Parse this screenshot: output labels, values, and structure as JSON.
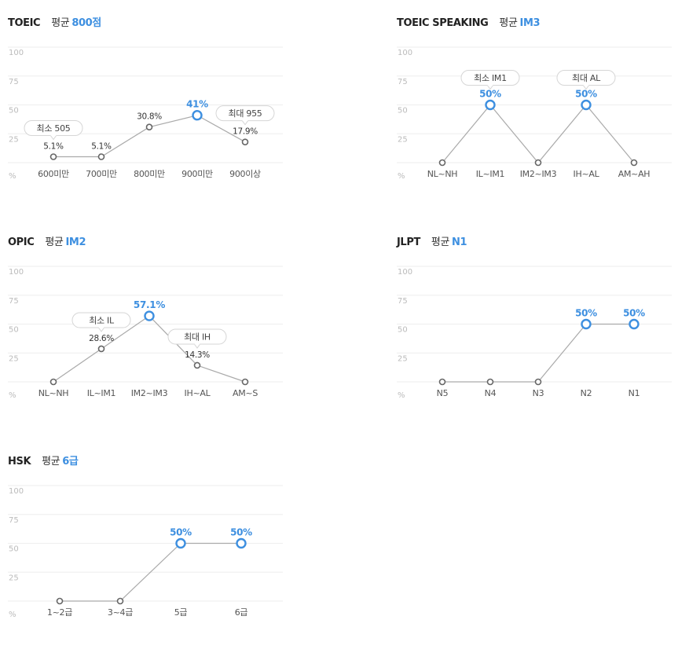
{
  "y_ticks": [
    "100",
    "75",
    "50",
    "25"
  ],
  "unit_label": "%",
  "colors": {
    "accent": "#3d8fe0",
    "point": "#666666",
    "line": "#aaaaaa",
    "grid": "#eeeeee"
  },
  "panels": [
    {
      "title": "TOEIC",
      "avg_label": "평균",
      "avg_value": "800점",
      "bubbles": [
        {
          "text": "최소 505",
          "index": 0
        },
        {
          "text": "최대 955",
          "index": 4
        }
      ]
    },
    {
      "title": "TOEIC SPEAKING",
      "avg_label": "평균",
      "avg_value": "IM3",
      "bubbles": [
        {
          "text": "최소 IM1",
          "index": 1
        },
        {
          "text": "최대 AL",
          "index": 3
        }
      ]
    },
    {
      "title": "OPIC",
      "avg_label": "평균",
      "avg_value": "IM2",
      "bubbles": [
        {
          "text": "최소 IL",
          "index": 1
        },
        {
          "text": "최대 IH",
          "index": 3
        }
      ]
    },
    {
      "title": "JLPT",
      "avg_label": "평균",
      "avg_value": "N1",
      "bubbles": []
    },
    {
      "title": "HSK",
      "avg_label": "평균",
      "avg_value": "6급",
      "bubbles": []
    }
  ],
  "chart_data": [
    {
      "type": "line",
      "title": "TOEIC",
      "ylabel": "%",
      "ylim": [
        0,
        100
      ],
      "grid": true,
      "categories": [
        "600미만",
        "700미만",
        "800미만",
        "900미만",
        "900이상"
      ],
      "values": [
        5.1,
        5.1,
        30.8,
        41,
        17.9
      ],
      "labels": [
        "5.1%",
        "5.1%",
        "30.8%",
        "41%",
        "17.9%"
      ],
      "highlight": [
        3
      ]
    },
    {
      "type": "line",
      "title": "TOEIC SPEAKING",
      "ylabel": "%",
      "ylim": [
        0,
        100
      ],
      "grid": true,
      "categories": [
        "NL~NH",
        "IL~IM1",
        "IM2~IM3",
        "IH~AL",
        "AM~AH"
      ],
      "values": [
        0,
        50,
        0,
        50,
        0
      ],
      "labels": [
        "",
        "50%",
        "",
        "50%",
        ""
      ],
      "highlight": [
        1,
        3
      ]
    },
    {
      "type": "line",
      "title": "OPIC",
      "ylabel": "%",
      "ylim": [
        0,
        100
      ],
      "grid": true,
      "categories": [
        "NL~NH",
        "IL~IM1",
        "IM2~IM3",
        "IH~AL",
        "AM~S"
      ],
      "values": [
        0,
        28.6,
        57.1,
        14.3,
        0
      ],
      "labels": [
        "",
        "28.6%",
        "57.1%",
        "14.3%",
        ""
      ],
      "highlight": [
        2
      ]
    },
    {
      "type": "line",
      "title": "JLPT",
      "ylabel": "%",
      "ylim": [
        0,
        100
      ],
      "grid": true,
      "categories": [
        "N5",
        "N4",
        "N3",
        "N2",
        "N1"
      ],
      "values": [
        0,
        0,
        0,
        50,
        50
      ],
      "labels": [
        "",
        "",
        "",
        "50%",
        "50%"
      ],
      "highlight": [
        3,
        4
      ]
    },
    {
      "type": "line",
      "title": "HSK",
      "ylabel": "%",
      "ylim": [
        0,
        100
      ],
      "grid": true,
      "categories": [
        "1~2급",
        "3~4급",
        "5급",
        "6급"
      ],
      "values": [
        0,
        0,
        50,
        50
      ],
      "labels": [
        "",
        "",
        "50%",
        "50%"
      ],
      "highlight": [
        2,
        3
      ]
    }
  ]
}
